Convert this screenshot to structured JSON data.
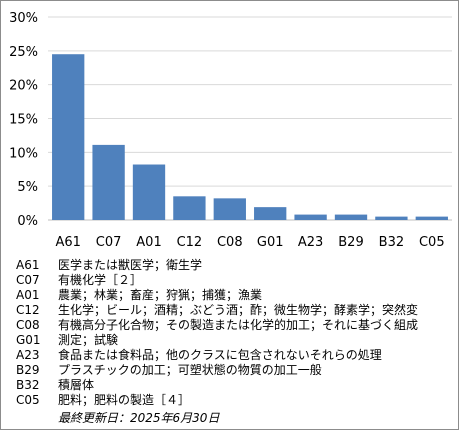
{
  "chart_data": {
    "type": "bar",
    "categories": [
      "A61",
      "C07",
      "A01",
      "C12",
      "C08",
      "G01",
      "A23",
      "B29",
      "B32",
      "C05"
    ],
    "values": [
      24.5,
      11.1,
      8.2,
      3.5,
      3.2,
      1.9,
      0.8,
      0.8,
      0.5,
      0.5
    ],
    "ylim": [
      0,
      30
    ],
    "yticks": [
      "0%",
      "5%",
      "10%",
      "15%",
      "20%",
      "25%",
      "30%"
    ],
    "ytick_values": [
      0,
      5,
      10,
      15,
      20,
      25,
      30
    ],
    "grid": true,
    "bar_color": "#4f81bd"
  },
  "legend": [
    {
      "code": "A61",
      "desc": "医学または獣医学；衛生学"
    },
    {
      "code": "C07",
      "desc": "有機化学［２］"
    },
    {
      "code": "A01",
      "desc": "農業；林業；畜産；狩猟；捕獲；漁業"
    },
    {
      "code": "C12",
      "desc": "生化学；ビール；酒精；ぶどう酒；酢；微生物学；酵素学；突然変"
    },
    {
      "code": "C08",
      "desc": "有機高分子化合物；その製造または化学的加工；それに基づく組成"
    },
    {
      "code": "G01",
      "desc": "測定；試験"
    },
    {
      "code": "A23",
      "desc": "食品または食料品；他のクラスに包含されないそれらの処理"
    },
    {
      "code": "B29",
      "desc": "プラスチックの加工；可塑状態の物質の加工一般"
    },
    {
      "code": "B32",
      "desc": "積層体"
    },
    {
      "code": "C05",
      "desc": "肥料；肥料の製造［４］"
    }
  ],
  "updated": "最終更新日：2025年6月30日"
}
